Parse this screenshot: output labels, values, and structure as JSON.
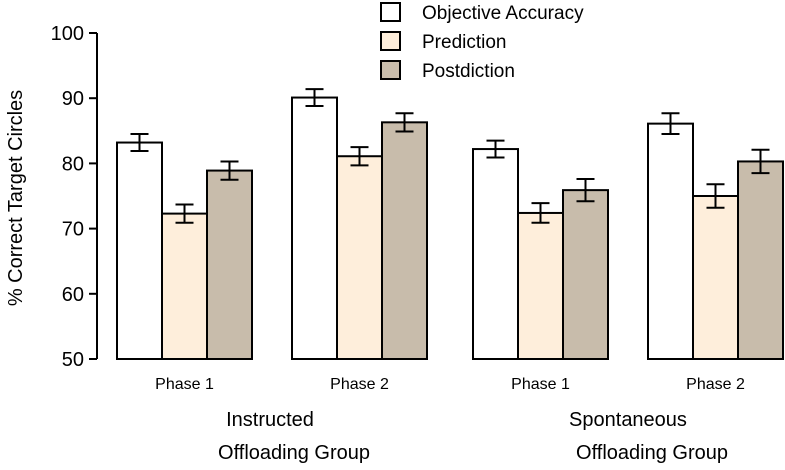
{
  "chart_data": {
    "type": "bar",
    "title": "",
    "ylabel": "% Correct Target Circles",
    "xlabel": "",
    "ylim": [
      50,
      100
    ],
    "yticks": [
      50,
      60,
      70,
      80,
      90,
      100
    ],
    "groups": [
      {
        "label_lines": [
          "Instructed",
          "Offloading Group"
        ],
        "categories": [
          "Phase 1",
          "Phase 2"
        ]
      },
      {
        "label_lines": [
          "Spontaneous",
          "Offloading Group"
        ],
        "categories": [
          "Phase 1",
          "Phase 2"
        ]
      }
    ],
    "categories": [
      "Phase 1",
      "Phase 2",
      "Phase 1",
      "Phase 2"
    ],
    "series": [
      {
        "name": "Objective Accuracy",
        "color": "#ffffff",
        "values": [
          83.2,
          90.1,
          82.2,
          86.1
        ],
        "errors": [
          1.3,
          1.3,
          1.3,
          1.6
        ]
      },
      {
        "name": "Prediction",
        "color": "#feeedb",
        "values": [
          72.3,
          81.1,
          72.4,
          75.0
        ],
        "errors": [
          1.4,
          1.4,
          1.5,
          1.8
        ]
      },
      {
        "name": "Postdiction",
        "color": "#c8bcab",
        "values": [
          78.9,
          86.3,
          75.9,
          80.3
        ],
        "errors": [
          1.4,
          1.4,
          1.7,
          1.8
        ]
      }
    ],
    "legend_position": "top-center"
  }
}
